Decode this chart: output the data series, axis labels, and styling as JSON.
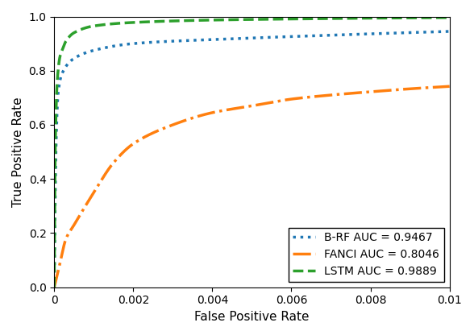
{
  "title": "",
  "xlabel": "False Positive Rate",
  "ylabel": "True Positive Rate",
  "xlim": [
    0,
    0.01
  ],
  "ylim": [
    0.0,
    1.0
  ],
  "legend_entries": [
    {
      "label": "B-RF AUC = 0.9467",
      "color": "#1f77b4",
      "linestyle": "dotted",
      "linewidth": 2.5
    },
    {
      "label": "FANCI AUC = 0.8046",
      "color": "#ff7f0e",
      "linestyle": "dashdot",
      "linewidth": 2.5
    },
    {
      "label": "LSTM AUC = 0.9889",
      "color": "#2ca02c",
      "linestyle": "dashed",
      "linewidth": 2.5
    }
  ],
  "xticks": [
    0,
    0.002,
    0.004,
    0.006,
    0.008,
    0.01
  ],
  "yticks": [
    0.0,
    0.2,
    0.4,
    0.6,
    0.8,
    1.0
  ],
  "figsize": [
    5.88,
    4.16
  ],
  "dpi": 100,
  "brf_keypoints": [
    [
      0.0,
      0.0
    ],
    [
      5e-05,
      0.55
    ],
    [
      0.0001,
      0.72
    ],
    [
      0.0002,
      0.79
    ],
    [
      0.0005,
      0.845
    ],
    [
      0.001,
      0.875
    ],
    [
      0.002,
      0.9
    ],
    [
      0.004,
      0.915
    ],
    [
      0.006,
      0.926
    ],
    [
      0.008,
      0.936
    ],
    [
      0.01,
      0.945
    ]
  ],
  "fanci_keypoints": [
    [
      0.0,
      0.0
    ],
    [
      0.0001,
      0.06
    ],
    [
      0.0003,
      0.18
    ],
    [
      0.0005,
      0.23
    ],
    [
      0.001,
      0.35
    ],
    [
      0.0015,
      0.46
    ],
    [
      0.002,
      0.53
    ],
    [
      0.003,
      0.6
    ],
    [
      0.004,
      0.645
    ],
    [
      0.005,
      0.67
    ],
    [
      0.006,
      0.695
    ],
    [
      0.007,
      0.71
    ],
    [
      0.008,
      0.722
    ],
    [
      0.009,
      0.733
    ],
    [
      0.01,
      0.742
    ]
  ],
  "lstm_keypoints": [
    [
      0.0,
      0.0
    ],
    [
      3e-05,
      0.55
    ],
    [
      8e-05,
      0.77
    ],
    [
      0.00015,
      0.855
    ],
    [
      0.0002,
      0.875
    ],
    [
      0.0003,
      0.91
    ],
    [
      0.0005,
      0.94
    ],
    [
      0.001,
      0.965
    ],
    [
      0.002,
      0.978
    ],
    [
      0.004,
      0.987
    ],
    [
      0.006,
      0.991
    ],
    [
      0.008,
      0.994
    ],
    [
      0.01,
      0.996
    ]
  ]
}
